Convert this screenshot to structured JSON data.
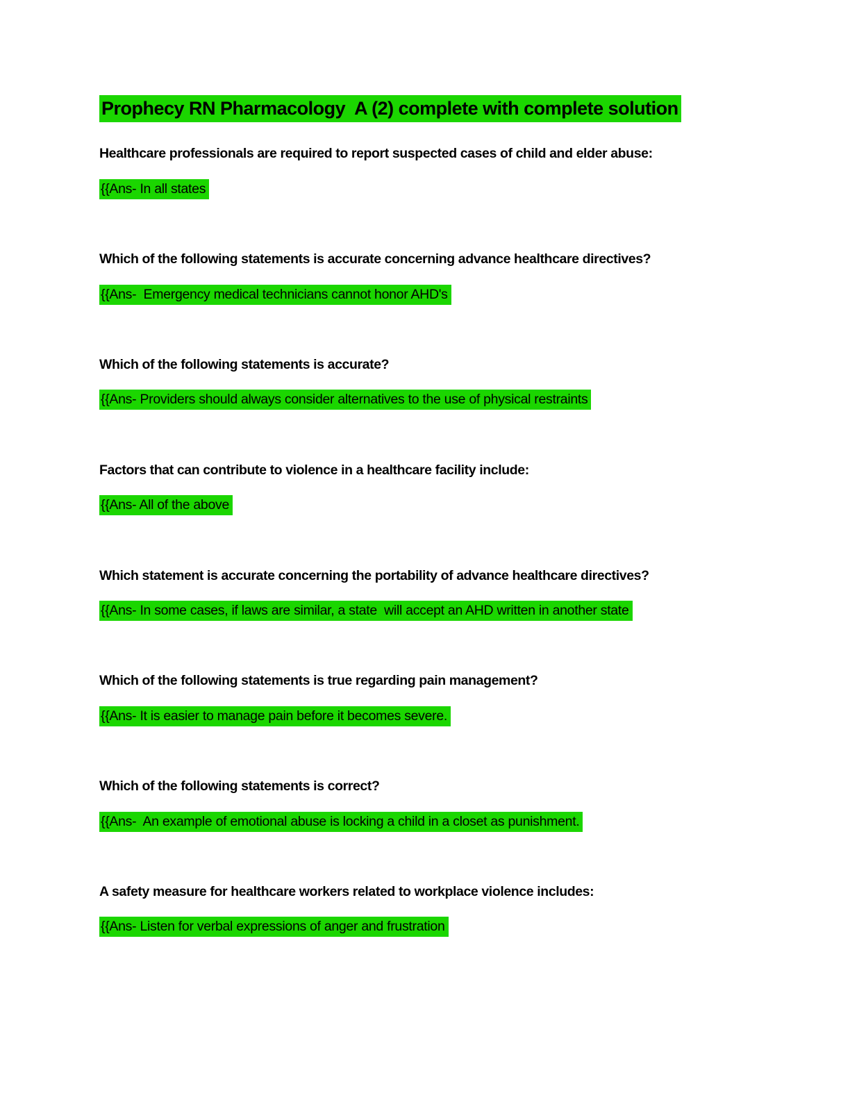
{
  "page": {
    "background_color": "#ffffff",
    "text_color": "#000000",
    "highlight_color": "#1BD600"
  },
  "doc": {
    "title": "Prophecy RN Pharmacology  A (2) complete with complete solution",
    "qa": [
      {
        "question": "Healthcare professionals are required to report suspected cases of child and elder abuse:",
        "answer": "{{Ans- In all states"
      },
      {
        "question": "Which of the following statements is accurate concerning advance healthcare directives?",
        "answer": "{{Ans-  Emergency medical technicians cannot honor AHD's"
      },
      {
        "question": "Which of the following statements is accurate?",
        "answer": "{{Ans- Providers should always consider alternatives to the use of physical restraints"
      },
      {
        "question": "Factors that can contribute to violence in a healthcare facility include:",
        "answer": "{{Ans- All of the above"
      },
      {
        "question": "Which statement is accurate concerning the portability of advance healthcare directives?",
        "answer": "{{Ans- In some cases, if laws are similar, a state  will accept an AHD written in another state"
      },
      {
        "question": "Which of the following statements is true regarding pain management?",
        "answer": "{{Ans- It is easier to manage pain before it becomes severe."
      },
      {
        "question": "Which of the following statements is correct?",
        "answer": "{{Ans-  An example of emotional abuse is locking a child in a closet as punishment."
      },
      {
        "question": "A safety measure for healthcare workers related to workplace violence includes:",
        "answer": "{{Ans- Listen for verbal expressions of anger and frustration"
      }
    ]
  }
}
